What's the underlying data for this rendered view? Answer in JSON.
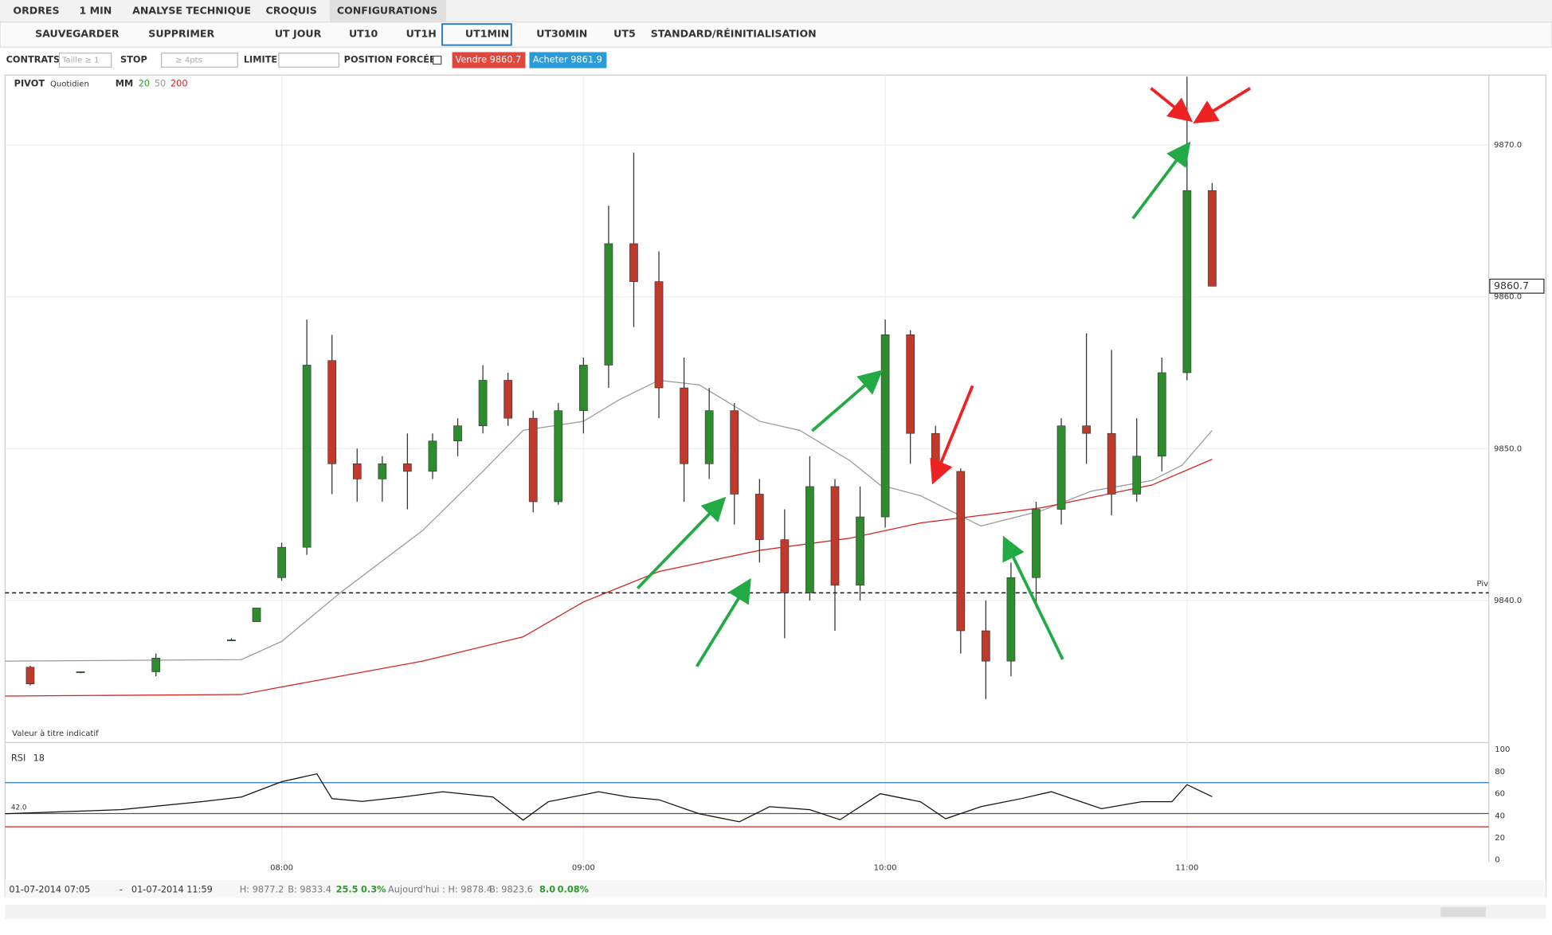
{
  "toolbar": {
    "menus": [
      "ORDRES",
      "1 MIN",
      "ANALYSE TECHNIQUE",
      "CROQUIS",
      "CONFIGURATIONS"
    ],
    "actions": [
      "SAUVEGARDER",
      "SUPPRIMER"
    ],
    "timeframes": [
      "UT JOUR",
      "UT10",
      "UT1H",
      "UT1MIN",
      "UT30MIN",
      "UT5"
    ],
    "reset": "STANDARD/RÉINITIALISATION"
  },
  "order_bar": {
    "contracts": "CONTRATS",
    "size_placeholder": "Taille ≥ 1",
    "stop": "STOP",
    "stop_placeholder": "≥ 4pts",
    "limit": "LIMITE",
    "forced": "POSITION FORCÉE",
    "sell": "Vendre 9860.7",
    "buy": "Acheter 9861.9"
  },
  "chart_data": {
    "type": "candlestick",
    "header": "PIVOT",
    "pivot_period": "Quotidien",
    "ma_label": "MM",
    "note": "Valeur à titre indicatif",
    "xlim": [
      "07:05",
      "12:00"
    ],
    "xticks": [
      "08:00",
      "09:00",
      "10:00",
      "11:00"
    ],
    "ylim": [
      9830.7,
      9874.6
    ],
    "yticks": [
      {
        "value": 9840,
        "label": "9840.0"
      },
      {
        "value": 9850,
        "label": "9850.0"
      },
      {
        "value": 9860,
        "label": "9860.0"
      },
      {
        "value": 9870,
        "label": "9870.0"
      }
    ],
    "grid": true,
    "up_color": "#2e8b2e",
    "down_color": "#c0392b",
    "last_price": 9860.7,
    "pivot": {
      "value": 9840.5,
      "label": "Piv"
    },
    "x": [
      "07:10",
      "07:20",
      "07:35",
      "07:50",
      "07:55",
      "08:00",
      "08:05",
      "08:10",
      "08:15",
      "08:20",
      "08:25",
      "08:30",
      "08:35",
      "08:40",
      "08:45",
      "08:50",
      "08:55",
      "09:00",
      "09:05",
      "09:10",
      "09:15",
      "09:20",
      "09:25",
      "09:30",
      "09:35",
      "09:40",
      "09:45",
      "09:50",
      "09:55",
      "10:00",
      "10:05",
      "10:10",
      "10:15",
      "10:20",
      "10:25",
      "10:30",
      "10:35",
      "10:40",
      "10:45",
      "10:50",
      "10:55",
      "11:00",
      "11:05"
    ],
    "open": [
      9835.6,
      9835.3,
      9835.3,
      9837.4,
      9838.6,
      9841.5,
      9843.5,
      9855.8,
      9849.0,
      9848.0,
      9849.0,
      9848.5,
      9850.5,
      9851.5,
      9854.5,
      9852.0,
      9846.5,
      9852.5,
      9855.5,
      9863.5,
      9861.0,
      9854.0,
      9849.0,
      9852.5,
      9847.0,
      9844.0,
      9840.5,
      9847.5,
      9841.0,
      9845.5,
      9857.5,
      9851.0,
      9848.5,
      9838.0,
      9836.0,
      9841.5,
      9846.0,
      9851.5,
      9851.0,
      9847.0,
      9849.5,
      9855.0,
      9867.0
    ],
    "high": [
      9835.7,
      9835.3,
      9836.5,
      9837.5,
      9839.5,
      9843.8,
      9858.5,
      9857.5,
      9850.0,
      9849.5,
      9851.0,
      9851.0,
      9852.0,
      9855.5,
      9855.0,
      9852.5,
      9853.0,
      9856.0,
      9866.0,
      9869.5,
      9863.0,
      9856.0,
      9854.0,
      9853.0,
      9848.0,
      9846.0,
      9849.5,
      9848.0,
      9847.5,
      9858.5,
      9857.8,
      9851.5,
      9848.7,
      9840.0,
      9842.5,
      9846.5,
      9852.0,
      9857.6,
      9856.5,
      9852.0,
      9856.0,
      9874.5,
      9867.5
    ],
    "low": [
      9834.4,
      9835.2,
      9835.0,
      9837.4,
      9838.6,
      9841.3,
      9843.0,
      9847.0,
      9846.5,
      9846.5,
      9846.0,
      9848.0,
      9849.5,
      9851.0,
      9851.5,
      9845.8,
      9846.3,
      9851.0,
      9854.0,
      9858.0,
      9852.0,
      9846.5,
      9848.0,
      9845.0,
      9842.5,
      9837.5,
      9840.0,
      9838.0,
      9840.0,
      9844.8,
      9849.0,
      9848.0,
      9836.5,
      9833.5,
      9835.0,
      9839.5,
      9845.0,
      9849.0,
      9845.6,
      9846.5,
      9848.5,
      9854.5,
      9860.7
    ],
    "close": [
      9834.5,
      9835.3,
      9836.2,
      9837.4,
      9839.5,
      9843.5,
      9855.5,
      9849.0,
      9848.0,
      9849.0,
      9848.5,
      9850.5,
      9851.5,
      9854.5,
      9852.0,
      9846.5,
      9852.5,
      9855.5,
      9863.5,
      9861.0,
      9854.0,
      9849.0,
      9852.5,
      9847.0,
      9844.0,
      9840.5,
      9847.5,
      9841.0,
      9845.5,
      9857.5,
      9851.0,
      9848.5,
      9838.0,
      9836.0,
      9841.5,
      9846.0,
      9851.5,
      9851.0,
      9847.0,
      9849.5,
      9855.0,
      9867.0,
      9860.7
    ],
    "moving_averages": [
      {
        "name": "20",
        "color": "#3a9a3a",
        "x": [],
        "values": []
      },
      {
        "name": "50",
        "color": "#999999",
        "x": [
          "07:05",
          "07:52",
          "08:00",
          "08:12",
          "08:28",
          "08:40",
          "08:48",
          "09:00",
          "09:07",
          "09:15",
          "09:23",
          "09:35",
          "09:43",
          "09:53",
          "09:59",
          "10:07",
          "10:19",
          "10:31",
          "10:41",
          "10:53",
          "10:59",
          "11:05"
        ],
        "values": [
          9836.0,
          9836.1,
          9837.3,
          9840.6,
          9844.6,
          9848.5,
          9851.2,
          9851.8,
          9853.2,
          9854.5,
          9854.2,
          9851.8,
          9851.2,
          9849.2,
          9847.6,
          9846.9,
          9844.9,
          9845.9,
          9847.2,
          9847.9,
          9848.9,
          9851.2
        ]
      },
      {
        "name": "200",
        "color": "#d22222",
        "x": [
          "07:05",
          "07:52",
          "08:00",
          "08:28",
          "08:48",
          "09:00",
          "09:15",
          "09:35",
          "09:53",
          "10:07",
          "10:31",
          "10:53",
          "11:05"
        ],
        "values": [
          9833.7,
          9833.8,
          9834.3,
          9836.0,
          9837.6,
          9839.9,
          9841.9,
          9843.3,
          9844.1,
          9845.1,
          9846.1,
          9847.6,
          9849.3
        ]
      }
    ],
    "rsi": {
      "label": "RSI",
      "period": 18,
      "ylim": [
        0,
        100
      ],
      "yticks": [
        0,
        20,
        40,
        60,
        80,
        100
      ],
      "upper": 70,
      "lower": 30,
      "upper_color": "#2a7ab8",
      "lower_color": "#d22222",
      "level": {
        "value": 42,
        "label": "42.0"
      },
      "x": [
        "07:05",
        "07:28",
        "07:44",
        "07:52",
        "08:00",
        "08:07",
        "08:10",
        "08:16",
        "08:24",
        "08:32",
        "08:42",
        "08:48",
        "08:53",
        "09:03",
        "09:09",
        "09:15",
        "09:23",
        "09:31",
        "09:37",
        "09:45",
        "09:51",
        "09:59",
        "10:07",
        "10:12",
        "10:19",
        "10:27",
        "10:33",
        "10:43",
        "10:51",
        "10:57",
        "11:00",
        "11:05"
      ],
      "values": [
        41.8,
        45.5,
        52.7,
        57.0,
        70.9,
        78.0,
        55.5,
        53.0,
        57.0,
        61.8,
        57.0,
        36.0,
        52.7,
        61.8,
        57.0,
        54.5,
        41.8,
        34.5,
        48.2,
        45.5,
        36.4,
        60.0,
        52.7,
        37.3,
        48.2,
        55.5,
        61.8,
        46.4,
        52.7,
        52.7,
        68.2,
        57.3
      ]
    }
  },
  "footer": {
    "from": "01-07-2014 07:05",
    "dash": "-",
    "to": "01-07-2014 11:59",
    "high": "H: 9877.2",
    "low": "B: 9833.4",
    "change": "25.5",
    "change_pct": "0.3%",
    "today_high": "Aujourd'hui : H: 9878.4",
    "today_low": "B: 9823.6",
    "today_change": "8.0",
    "today_change_pct": "0.08%"
  }
}
